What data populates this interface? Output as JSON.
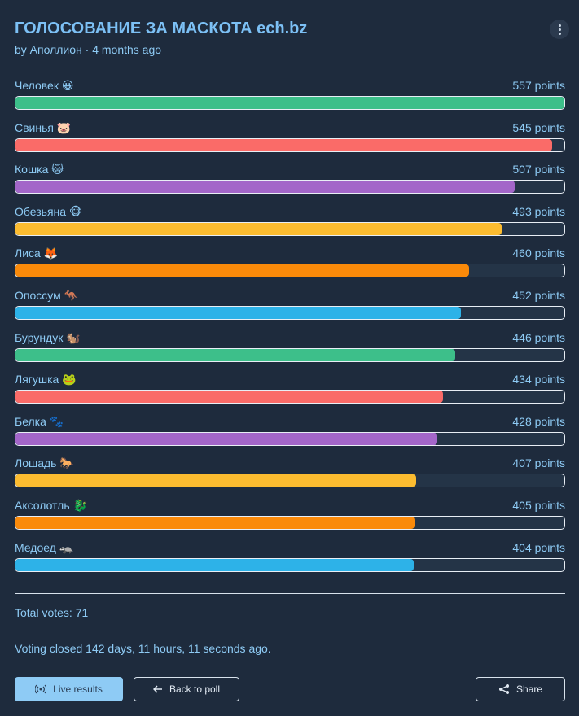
{
  "header": {
    "title": "ГОЛОСОВАНИЕ ЗА МАСКОТА ech.bz",
    "byline": "by Аполлион · 4 months ago"
  },
  "options": [
    {
      "label": "Человек 😀",
      "points": 557,
      "points_label": "557 points",
      "color": "#3dbf8a"
    },
    {
      "label": "Свинья 🐷",
      "points": 545,
      "points_label": "545 points",
      "color": "#fa6b68"
    },
    {
      "label": "Кошка 😺",
      "points": 507,
      "points_label": "507 points",
      "color": "#a366c9"
    },
    {
      "label": "Обезьяна 🐵",
      "points": 493,
      "points_label": "493 points",
      "color": "#fcbc30"
    },
    {
      "label": "Лиса 🦊",
      "points": 460,
      "points_label": "460 points",
      "color": "#fa8a0a"
    },
    {
      "label": "Опоссум 🦘",
      "points": 452,
      "points_label": "452 points",
      "color": "#2db2e8"
    },
    {
      "label": "Бурундук 🐿️",
      "points": 446,
      "points_label": "446 points",
      "color": "#3dbf8a"
    },
    {
      "label": "Лягушка 🐸",
      "points": 434,
      "points_label": "434 points",
      "color": "#fa6b68"
    },
    {
      "label": "Белка 🐾",
      "points": 428,
      "points_label": "428 points",
      "color": "#a366c9"
    },
    {
      "label": "Лошадь 🐎",
      "points": 407,
      "points_label": "407 points",
      "color": "#fcbc30"
    },
    {
      "label": "Аксолотль 🐉",
      "points": 405,
      "points_label": "405 points",
      "color": "#fa8a0a"
    },
    {
      "label": "Медоед 🦡",
      "points": 404,
      "points_label": "404 points",
      "color": "#2db2e8"
    }
  ],
  "footer": {
    "total": "Total votes: 71",
    "closed": "Voting closed 142 days, 11 hours, 11 seconds ago."
  },
  "buttons": {
    "live": "Live results",
    "back": "Back to poll",
    "share": "Share"
  }
}
